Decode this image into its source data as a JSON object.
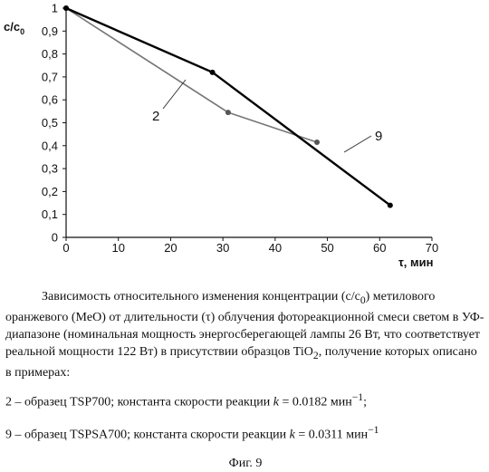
{
  "chart_data": {
    "type": "line",
    "xlabel": "τ, мин",
    "ylabel": "c/c0",
    "ylabel_main": "c/c",
    "ylabel_sub": "0",
    "xlim": [
      0,
      70
    ],
    "ylim": [
      0,
      1
    ],
    "x_ticks": [
      "0",
      "10",
      "20",
      "30",
      "40",
      "50",
      "60",
      "70"
    ],
    "y_ticks": [
      "0",
      "0,1",
      "0,2",
      "0,3",
      "0,4",
      "0,5",
      "0,6",
      "0,7",
      "0,8",
      "0,9",
      "1"
    ],
    "grid": false,
    "series": [
      {
        "name": "2",
        "x": [
          0,
          31,
          48
        ],
        "y": [
          1.0,
          0.545,
          0.415
        ],
        "color": "#777777"
      },
      {
        "name": "9",
        "x": [
          0,
          28,
          62
        ],
        "y": [
          1.0,
          0.72,
          0.14
        ],
        "color": "#000000"
      }
    ]
  },
  "caption": {
    "body_part1": "Зависимость относительного изменения концентрации (c/c",
    "body_sub1": "0",
    "body_part2": ") метилового оранжевого (MeO) от длительности (τ) облучения фотореакционной смеси светом в УФ-диапазоне (номинальная мощность энергосберегающей лампы 26 Вт, что соответствует реальной мощности 122 Вт) в присутствии образцов TiO",
    "body_sub2": "2",
    "body_part3": ", получение которых описано в примерах:",
    "item1_text": "2 – образец TSP700;  константа скорости реакции ",
    "item1_k": "k",
    "item1_value": " = 0.0182 мин",
    "item1_sup": "−1",
    "item1_tail": ";",
    "item2_text": "9 – образец TSPSA700;  константа скорости реакции ",
    "item2_k": "k",
    "item2_value": " = 0.0311 мин",
    "item2_sup": "−1",
    "figure_label": "Фиг. 9"
  }
}
